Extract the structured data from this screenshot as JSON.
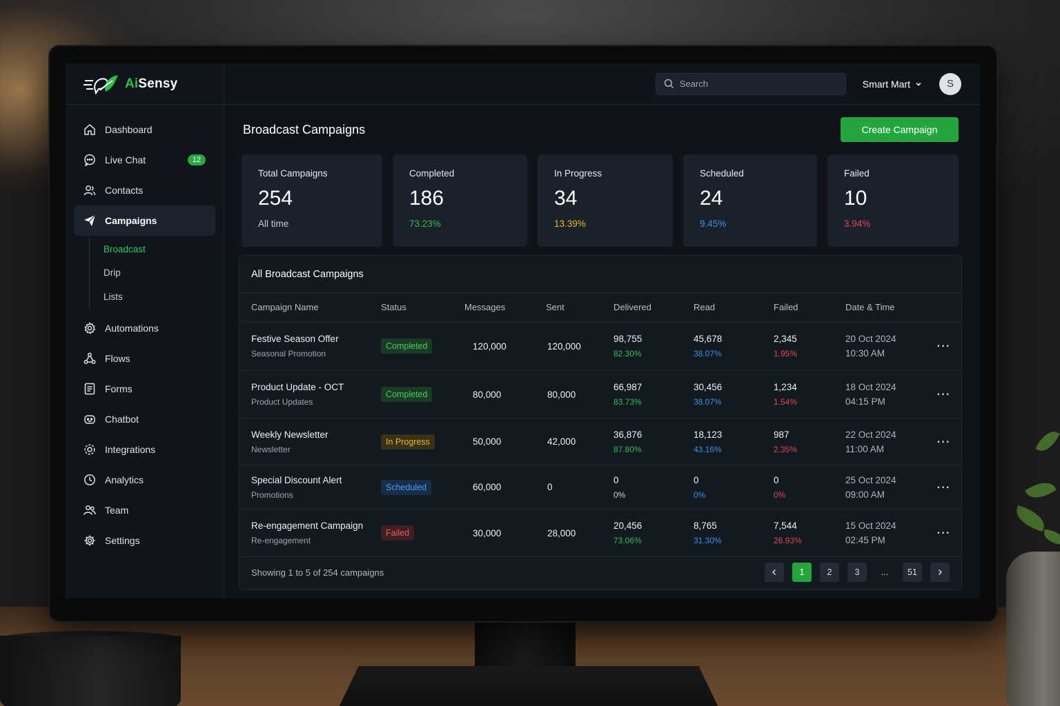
{
  "brand": {
    "name_prefix": "Ai",
    "name_suffix": "Sensy"
  },
  "header": {
    "search_placeholder": "Search",
    "org_name": "Smart Mart",
    "avatar_initial": "S"
  },
  "sidebar": {
    "items": [
      {
        "label": "Dashboard",
        "icon": "home-icon"
      },
      {
        "label": "Live Chat",
        "icon": "chat-icon",
        "badge": "12"
      },
      {
        "label": "Contacts",
        "icon": "contacts-icon"
      },
      {
        "label": "Campaigns",
        "icon": "send-icon",
        "active": true
      },
      {
        "label": "Automations",
        "icon": "gear-icon"
      },
      {
        "label": "Flows",
        "icon": "flows-icon"
      },
      {
        "label": "Forms",
        "icon": "form-icon"
      },
      {
        "label": "Chatbot",
        "icon": "bot-icon"
      },
      {
        "label": "Integrations",
        "icon": "integrations-icon"
      },
      {
        "label": "Analytics",
        "icon": "clock-icon"
      },
      {
        "label": "Team",
        "icon": "team-icon"
      },
      {
        "label": "Settings",
        "icon": "settings-icon"
      }
    ],
    "campaign_sub": [
      {
        "label": "Broadcast",
        "active": true
      },
      {
        "label": "Drip"
      },
      {
        "label": "Lists"
      }
    ]
  },
  "page": {
    "title": "Broadcast Campaigns",
    "create_button": "Create Campaign"
  },
  "stats": [
    {
      "label": "Total Campaigns",
      "value": "254",
      "sub": "All time",
      "color": "#c9ced5"
    },
    {
      "label": "Completed",
      "value": "186",
      "sub": "73.23%",
      "color": "#2fbf4f"
    },
    {
      "label": "In Progress",
      "value": "34",
      "sub": "13.39%",
      "color": "#e8b923"
    },
    {
      "label": "Scheduled",
      "value": "24",
      "sub": "9.45%",
      "color": "#3b8fe8"
    },
    {
      "label": "Failed",
      "value": "10",
      "sub": "3.94%",
      "color": "#e5484d"
    }
  ],
  "table": {
    "title": "All Broadcast Campaigns",
    "columns": [
      "Campaign Name",
      "Status",
      "Messages",
      "Sent",
      "Delivered",
      "Read",
      "Failed",
      "Date & Time"
    ],
    "rows": [
      {
        "name": "Festive Season Offer",
        "category": "Seasonal Promotion",
        "status": "Completed",
        "messages": "120,000",
        "sent": "120,000",
        "delivered": "98,755",
        "delivered_pct": "82.30%",
        "read": "45,678",
        "read_pct": "38.07%",
        "failed": "2,345",
        "failed_pct": "1.95%",
        "date": "20 Oct 2024",
        "time": "10:30 AM"
      },
      {
        "name": "Product Update - OCT",
        "category": "Product Updates",
        "status": "Completed",
        "messages": "80,000",
        "sent": "80,000",
        "delivered": "66,987",
        "delivered_pct": "83.73%",
        "read": "30,456",
        "read_pct": "38.07%",
        "failed": "1,234",
        "failed_pct": "1.54%",
        "date": "18 Oct 2024",
        "time": "04:15 PM"
      },
      {
        "name": "Weekly Newsletter",
        "category": "Newsletter",
        "status": "In Progress",
        "messages": "50,000",
        "sent": "42,000",
        "delivered": "36,876",
        "delivered_pct": "87.80%",
        "read": "18,123",
        "read_pct": "43.16%",
        "failed": "987",
        "failed_pct": "2.35%",
        "date": "22 Oct 2024",
        "time": "11:00 AM"
      },
      {
        "name": "Special Discount Alert",
        "category": "Promotions",
        "status": "Scheduled",
        "messages": "60,000",
        "sent": "0",
        "delivered": "0",
        "delivered_pct": "0%",
        "read": "0",
        "read_pct": "0%",
        "failed": "0",
        "failed_pct": "0%",
        "date": "25 Oct 2024",
        "time": "09:00 AM"
      },
      {
        "name": "Re-engagement Campaign",
        "category": "Re-engagement",
        "status": "Failed",
        "messages": "30,000",
        "sent": "28,000",
        "delivered": "20,456",
        "delivered_pct": "73.06%",
        "read": "8,765",
        "read_pct": "31.30%",
        "failed": "7,544",
        "failed_pct": "26.93%",
        "date": "15 Oct 2024",
        "time": "02:45 PM"
      }
    ],
    "footer_text": "Showing 1 to 5 of 254 campaigns",
    "pagination": [
      "1",
      "2",
      "3",
      "...",
      "51"
    ]
  },
  "colors": {
    "completed_text": "#3ccf5f",
    "completed_bg": "#1d3a26",
    "inprogress_text": "#eab72f",
    "inprogress_bg": "#3a3216",
    "scheduled_text": "#4c9cf0",
    "scheduled_bg": "#182d47",
    "failed_text": "#ef5b5b",
    "failed_bg": "#3e1f22",
    "delivered_pct": "#2fbf4f",
    "read_pct": "#3b8fe8",
    "failed_pct": "#e5484d"
  }
}
